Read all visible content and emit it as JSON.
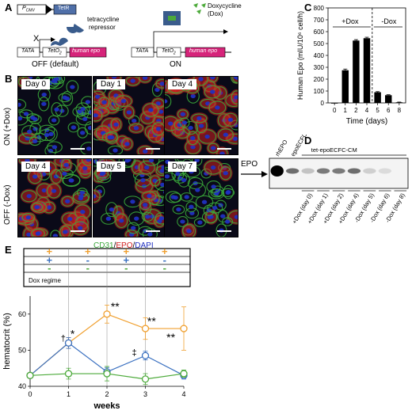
{
  "panel_labels": {
    "A": "A",
    "B": "B",
    "C": "C",
    "D": "D",
    "E": "E"
  },
  "panel_a": {
    "promoter": "P",
    "promoter_sub": "CMV",
    "repressor_gene": "TetR",
    "repressor_label_1": "tetracycline",
    "repressor_label_2": "repressor",
    "dox_label_1": "Doxycycline",
    "dox_label_2": "(Dox)",
    "tata": "TATA",
    "teto": "TetO",
    "teto_sub": "2",
    "epo": "human epo",
    "off_label": "OFF (default)",
    "on_label": "ON",
    "x_mark": "X",
    "colors": {
      "repressor": "#3a5c8c",
      "epo_box": "#d6247a",
      "gene_box": "#4f6fa8",
      "dox": "#4caa3a"
    }
  },
  "panel_b": {
    "row_on": "ON (+Dox)",
    "row_off": "OFF (-Dox)",
    "top_days": [
      "Day 0",
      "Day 1",
      "Day 4"
    ],
    "bottom_days": [
      "Day 4",
      "Day 5",
      "Day 7"
    ],
    "stain_cd31": "CD31",
    "stain_sep1": "/",
    "stain_epo": "EPO",
    "stain_sep2": "/",
    "stain_dapi": "DAPI",
    "colors": {
      "cd31": "#3aa83a",
      "epo": "#d02020",
      "dapi": "#2030c0"
    }
  },
  "chart_data": [
    {
      "panel": "C",
      "type": "bar",
      "ylabel": "Human Epo (mIU/10⁶ cell/h)",
      "xlabel": "Time (days)",
      "categories": [
        "0",
        "1",
        "2",
        "4",
        "5",
        "6",
        "8"
      ],
      "values": [
        0,
        275,
        525,
        545,
        90,
        65,
        5
      ],
      "errors": [
        0,
        10,
        8,
        8,
        5,
        4,
        2
      ],
      "ylim": [
        0,
        800
      ],
      "yticks": [
        "0",
        "100",
        "200",
        "300",
        "400",
        "500",
        "600",
        "700",
        "800"
      ],
      "annotations": {
        "plus_dox": "+Dox",
        "minus_dox": "-Dox"
      }
    },
    {
      "panel": "E",
      "type": "line",
      "xlabel": "weeks",
      "ylabel": "hematocrit (%)",
      "x": [
        0,
        1,
        2,
        3,
        4
      ],
      "xticks": [
        "0",
        "1",
        "2",
        "3",
        "4"
      ],
      "ylim": [
        40,
        65
      ],
      "yticks": [
        "40",
        "50",
        "60"
      ],
      "series": [
        {
          "color": "#f0a030",
          "values": [
            43,
            52,
            60,
            56,
            56
          ],
          "errors": [
            0,
            1.5,
            2.5,
            3,
            6
          ]
        },
        {
          "color": "#3a70c0",
          "values": [
            43,
            52,
            44,
            48.5,
            43
          ],
          "errors": [
            0,
            1.5,
            1.2,
            1.2,
            1
          ]
        },
        {
          "color": "#4caa3a",
          "values": [
            43,
            43.5,
            43.5,
            42,
            43.5
          ],
          "errors": [
            0,
            1.5,
            2,
            1.5,
            1
          ]
        }
      ],
      "regime": {
        "orange": [
          "+",
          "+",
          "+",
          "+"
        ],
        "blue": [
          "+",
          "-",
          "+",
          "-"
        ],
        "green": [
          "-",
          "-",
          "-",
          "-"
        ],
        "label": "Dox regime"
      },
      "annotations": {
        "dagger": "†",
        "star": "*",
        "double_star": "**",
        "double_dagger": "‡"
      }
    }
  ],
  "panel_d": {
    "epo_label": "EPO",
    "lane_rhepo": "rhEPO",
    "lane_epoecfc": "epoECFC-CM",
    "group_label": "tet-epoECFC-CM",
    "lanes": [
      "+Dox (day 0)",
      "+Dox (day 1)",
      "+Dox (day 2)",
      "+Dox (day 4)",
      "-Dox (day 5)",
      "-Dox (day 6)",
      "-Dox (day 8)"
    ],
    "band_intensity": [
      1.0,
      0.55,
      0.2,
      0.5,
      0.5,
      0.55,
      0.15,
      0.1,
      0
    ]
  }
}
